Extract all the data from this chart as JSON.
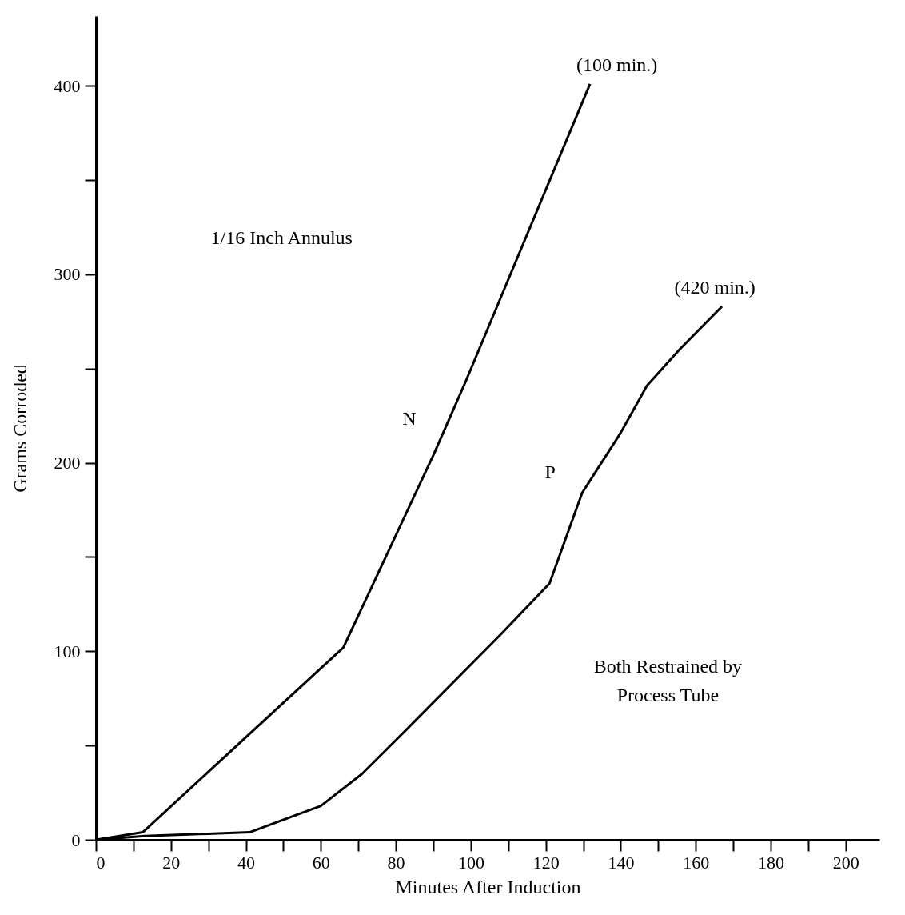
{
  "chart_data": {
    "type": "line",
    "xlabel": "Minutes After Induction",
    "ylabel": "Grams Corroded",
    "xlim": [
      0,
      209
    ],
    "ylim": [
      0,
      437
    ],
    "xticks": [
      0,
      {
        "value": 10,
        "label": null
      },
      20,
      {
        "value": 30,
        "label": null
      },
      40,
      {
        "value": 50,
        "label": null
      },
      60,
      {
        "value": 70,
        "label": null
      },
      80,
      {
        "value": 90,
        "label": null
      },
      100,
      {
        "value": 110,
        "label": null
      },
      120,
      {
        "value": 130,
        "label": null
      },
      140,
      {
        "value": 150,
        "label": null
      },
      160,
      {
        "value": 170,
        "label": null
      },
      180,
      {
        "value": 190,
        "label": null
      },
      200
    ],
    "yticks": [
      0,
      {
        "value": 50,
        "label": null
      },
      100,
      {
        "value": 150,
        "label": null
      },
      200,
      {
        "value": 250,
        "label": null
      },
      300,
      {
        "value": 350,
        "label": null
      },
      400
    ],
    "grid": false,
    "line_style": "solid",
    "marker": "none",
    "series": [
      {
        "name": "N",
        "color": "#000000",
        "x": [
          0,
          12.5,
          66,
          90,
          98.6,
          131.8
        ],
        "values": [
          0,
          4,
          102,
          204,
          243,
          401
        ]
      },
      {
        "name": "P",
        "color": "#000000",
        "x": [
          0,
          13,
          41,
          60,
          71,
          85.6,
          108.5,
          121,
          129.7,
          140,
          147,
          155.6,
          167
        ],
        "values": [
          0,
          2,
          4,
          18,
          35,
          64,
          110,
          136,
          184,
          216,
          241,
          260,
          283
        ]
      }
    ],
    "annotations": [
      "(100 min.)",
      "(420 min.)",
      "1/16 Inch Annulus",
      "Both Restrained by\nProcess Tube"
    ]
  }
}
